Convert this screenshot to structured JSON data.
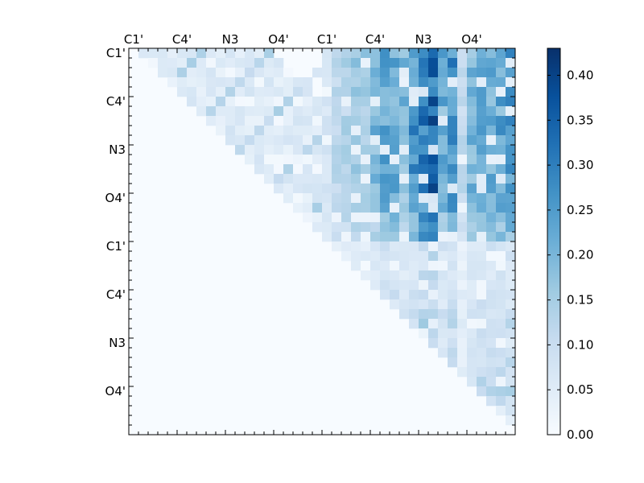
{
  "chart_data": {
    "type": "heatmap",
    "colormap": "Blues",
    "n": 40,
    "x_tick_labels": [
      "C1'",
      "C4'",
      "N3",
      "O4'",
      "C1'",
      "C4'",
      "N3",
      "O4'"
    ],
    "y_tick_labels": [
      "C1'",
      "C4'",
      "N3",
      "O4'",
      "C1'",
      "C4'",
      "N3",
      "O4'"
    ],
    "label_index_positions": [
      0,
      5,
      10,
      15,
      20,
      25,
      30,
      35
    ],
    "color_range": [
      0.0,
      0.43
    ],
    "colorbar_ticks": [
      "0.00",
      "0.05",
      "0.10",
      "0.15",
      "0.20",
      "0.25",
      "0.30",
      "0.35",
      "0.40"
    ],
    "colorbar_tick_values": [
      0.0,
      0.05,
      0.1,
      0.15,
      0.2,
      0.25,
      0.3,
      0.35,
      0.4
    ],
    "structure": "upper triangular matrix; lower triangle and diagonal are zero",
    "column_profile": [
      0,
      0,
      0,
      0,
      0,
      0,
      0,
      0,
      0,
      0,
      0,
      0,
      0,
      0,
      0,
      0,
      0.06,
      0.06,
      0.08,
      0.1,
      0.08,
      0.12,
      0.14,
      0.17,
      0.16,
      0.2,
      0.24,
      0.22,
      0.2,
      0.27,
      0.32,
      0.36,
      0.22,
      0.28,
      0.12,
      0.2,
      0.24,
      0.22,
      0.24,
      0.26
    ],
    "row_profile": [
      1.0,
      1.0,
      1.0,
      0.9,
      0.95,
      1.0,
      0.9,
      1.0,
      1.0,
      1.0,
      1.0,
      1.0,
      1.0,
      1.0,
      1.0,
      0.9,
      0.9,
      0.8,
      0.75,
      0.75,
      0.4,
      0.35,
      0.35,
      0.35,
      0.35,
      0.45,
      0.4,
      0.45,
      0.5,
      0.4,
      0.35,
      0.45,
      0.5,
      0.5,
      0.55,
      0.6,
      0.5,
      0.3,
      0.2,
      0.1
    ]
  }
}
